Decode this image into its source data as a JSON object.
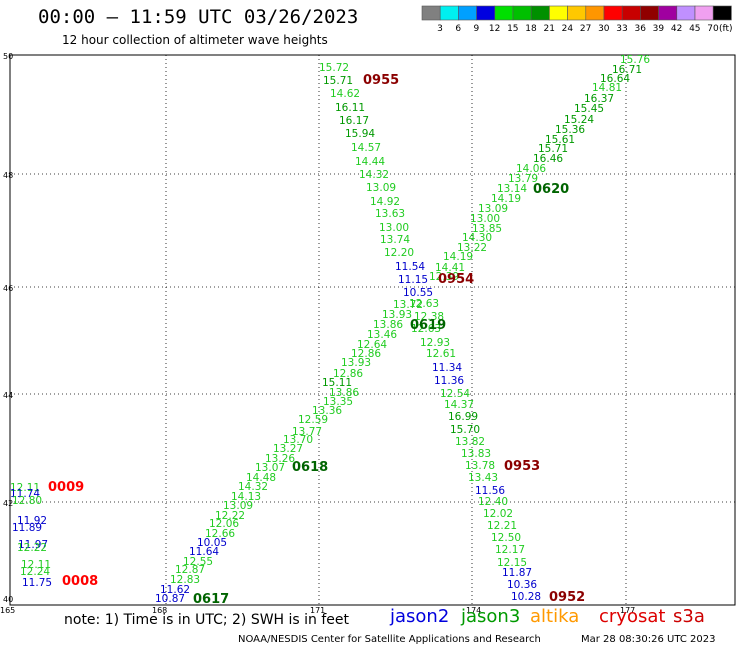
{
  "header": {
    "title": "00:00 – 11:59 UTC 03/26/2023",
    "subtitle": "12 hour collection of altimeter wave heights"
  },
  "color_scale": {
    "ticks": [
      "3",
      "6",
      "9",
      "12",
      "15",
      "18",
      "21",
      "24",
      "27",
      "30",
      "33",
      "36",
      "39",
      "42",
      "45",
      "70"
    ],
    "unit": "(ft)",
    "colors": [
      "#808080",
      "#00f0f0",
      "#00a0ff",
      "#0000e0",
      "#00e000",
      "#00c000",
      "#009000",
      "#ffff00",
      "#ffc800",
      "#ff9600",
      "#ff0000",
      "#c80000",
      "#900000",
      "#a000a0",
      "#c090ff",
      "#f0a0f0",
      "#000000"
    ]
  },
  "axes": {
    "lat_labels": [
      "50",
      "48",
      "46",
      "44",
      "42",
      "40"
    ],
    "lon_labels": [
      "165",
      "168",
      "171",
      "174",
      "177"
    ]
  },
  "track_times": [
    {
      "label": "0955",
      "color": "#8b0000"
    },
    {
      "label": "0620",
      "color": "#006400"
    },
    {
      "label": "0954",
      "color": "#8b0000"
    },
    {
      "label": "0619",
      "color": "#006400"
    },
    {
      "label": "0618",
      "color": "#006400"
    },
    {
      "label": "0953",
      "color": "#8b0000"
    },
    {
      "label": "0009",
      "color": "#ff0000"
    },
    {
      "label": "0008",
      "color": "#ff0000"
    },
    {
      "label": "0617",
      "color": "#006400"
    },
    {
      "label": "0952",
      "color": "#8b0000"
    }
  ],
  "values": [
    {
      "text": "15.72",
      "color": "#22cc22"
    },
    {
      "text": "15.71",
      "color": "#009900"
    },
    {
      "text": "14.62",
      "color": "#22cc22"
    },
    {
      "text": "16.11",
      "color": "#009900"
    },
    {
      "text": "16.17",
      "color": "#009900"
    },
    {
      "text": "15.94",
      "color": "#009900"
    },
    {
      "text": "14.57",
      "color": "#22cc22"
    },
    {
      "text": "14.44",
      "color": "#22cc22"
    },
    {
      "text": "14.32",
      "color": "#22cc22"
    },
    {
      "text": "13.09",
      "color": "#22cc22"
    },
    {
      "text": "14.92",
      "color": "#22cc22"
    },
    {
      "text": "13.63",
      "color": "#22cc22"
    },
    {
      "text": "13.00",
      "color": "#22cc22"
    },
    {
      "text": "13.74",
      "color": "#22cc22"
    },
    {
      "text": "12.20",
      "color": "#22cc22"
    },
    {
      "text": "11.54",
      "color": "#0000cc"
    },
    {
      "text": "11.15",
      "color": "#0000cc"
    },
    {
      "text": "10.55",
      "color": "#0000cc"
    },
    {
      "text": "13.72",
      "color": "#22cc22"
    },
    {
      "text": "12.63",
      "color": "#22cc22"
    },
    {
      "text": "13.93",
      "color": "#22cc22"
    },
    {
      "text": "12.38",
      "color": "#22cc22"
    },
    {
      "text": "13.86",
      "color": "#22cc22"
    },
    {
      "text": "12.63",
      "color": "#22cc22"
    },
    {
      "text": "13.46",
      "color": "#22cc22"
    },
    {
      "text": "12.64",
      "color": "#22cc22"
    },
    {
      "text": "12.93",
      "color": "#22cc22"
    },
    {
      "text": "12.86",
      "color": "#22cc22"
    },
    {
      "text": "12.61",
      "color": "#22cc22"
    },
    {
      "text": "13.93",
      "color": "#22cc22"
    },
    {
      "text": "11.34",
      "color": "#0000cc"
    },
    {
      "text": "12.86",
      "color": "#22cc22"
    },
    {
      "text": "11.36",
      "color": "#0000cc"
    },
    {
      "text": "15.11",
      "color": "#009900"
    },
    {
      "text": "13.86",
      "color": "#22cc22"
    },
    {
      "text": "12.54",
      "color": "#22cc22"
    },
    {
      "text": "13.35",
      "color": "#22cc22"
    },
    {
      "text": "14.37",
      "color": "#22cc22"
    },
    {
      "text": "13.36",
      "color": "#22cc22"
    },
    {
      "text": "16.99",
      "color": "#009900"
    },
    {
      "text": "12.59",
      "color": "#22cc22"
    },
    {
      "text": "15.70",
      "color": "#009900"
    },
    {
      "text": "13.77",
      "color": "#22cc22"
    },
    {
      "text": "13.82",
      "color": "#22cc22"
    },
    {
      "text": "13.70",
      "color": "#22cc22"
    },
    {
      "text": "13.27",
      "color": "#22cc22"
    },
    {
      "text": "13.83",
      "color": "#22cc22"
    },
    {
      "text": "13.26",
      "color": "#22cc22"
    },
    {
      "text": "13.07",
      "color": "#22cc22"
    },
    {
      "text": "13.78",
      "color": "#22cc22"
    },
    {
      "text": "14.48",
      "color": "#22cc22"
    },
    {
      "text": "13.43",
      "color": "#22cc22"
    },
    {
      "text": "14.32",
      "color": "#22cc22"
    },
    {
      "text": "11.56",
      "color": "#0000cc"
    },
    {
      "text": "14.13",
      "color": "#22cc22"
    },
    {
      "text": "12.40",
      "color": "#22cc22"
    },
    {
      "text": "13.09",
      "color": "#22cc22"
    },
    {
      "text": "12.02",
      "color": "#22cc22"
    },
    {
      "text": "12.22",
      "color": "#22cc22"
    },
    {
      "text": "12.21",
      "color": "#22cc22"
    },
    {
      "text": "12.06",
      "color": "#22cc22"
    },
    {
      "text": "12.66",
      "color": "#22cc22"
    },
    {
      "text": "12.50",
      "color": "#22cc22"
    },
    {
      "text": "10.05",
      "color": "#0000cc"
    },
    {
      "text": "12.17",
      "color": "#22cc22"
    },
    {
      "text": "11.64",
      "color": "#0000cc"
    },
    {
      "text": "12.15",
      "color": "#22cc22"
    },
    {
      "text": "12.55",
      "color": "#22cc22"
    },
    {
      "text": "11.87",
      "color": "#0000cc"
    },
    {
      "text": "12.87",
      "color": "#22cc22"
    },
    {
      "text": "12.83",
      "color": "#22cc22"
    },
    {
      "text": "10.36",
      "color": "#0000cc"
    },
    {
      "text": "11.62",
      "color": "#0000cc"
    },
    {
      "text": "10.28",
      "color": "#0000cc"
    },
    {
      "text": "10.87",
      "color": "#0000cc"
    },
    {
      "text": "15.76",
      "color": "#22cc22"
    },
    {
      "text": "16.71",
      "color": "#009900"
    },
    {
      "text": "16.64",
      "color": "#009900"
    },
    {
      "text": "14.81",
      "color": "#22cc22"
    },
    {
      "text": "16.37",
      "color": "#009900"
    },
    {
      "text": "15.45",
      "color": "#009900"
    },
    {
      "text": "15.24",
      "color": "#009900"
    },
    {
      "text": "15.36",
      "color": "#009900"
    },
    {
      "text": "15.61",
      "color": "#009900"
    },
    {
      "text": "15.71",
      "color": "#009900"
    },
    {
      "text": "16.46",
      "color": "#009900"
    },
    {
      "text": "14.06",
      "color": "#22cc22"
    },
    {
      "text": "13.79",
      "color": "#22cc22"
    },
    {
      "text": "13.14",
      "color": "#22cc22"
    },
    {
      "text": "14.19",
      "color": "#22cc22"
    },
    {
      "text": "13.09",
      "color": "#22cc22"
    },
    {
      "text": "13.00",
      "color": "#22cc22"
    },
    {
      "text": "13.85",
      "color": "#22cc22"
    },
    {
      "text": "14.30",
      "color": "#22cc22"
    },
    {
      "text": "13.22",
      "color": "#22cc22"
    },
    {
      "text": "14.19",
      "color": "#22cc22"
    },
    {
      "text": "14.41",
      "color": "#22cc22"
    },
    {
      "text": "12.39",
      "color": "#22cc22"
    },
    {
      "text": "12.11",
      "color": "#22cc22"
    },
    {
      "text": "11.74",
      "color": "#0000cc"
    },
    {
      "text": "12.80",
      "color": "#22cc22"
    },
    {
      "text": "11.92",
      "color": "#0000cc"
    },
    {
      "text": "11.89",
      "color": "#0000cc"
    },
    {
      "text": "11.97",
      "color": "#0000cc"
    },
    {
      "text": "12.22",
      "color": "#22cc22"
    },
    {
      "text": "12.11",
      "color": "#22cc22"
    },
    {
      "text": "12.24",
      "color": "#22cc22"
    },
    {
      "text": "11.75",
      "color": "#0000cc"
    }
  ],
  "footer": {
    "note": "note: 1) Time is in UTC; 2) SWH is in feet",
    "satellites": [
      {
        "name": "jason2",
        "color": "#0000dd"
      },
      {
        "name": "jason3",
        "color": "#009900"
      },
      {
        "name": "altika",
        "color": "#ff9900"
      },
      {
        "name": "cryosat",
        "color": "#dd0000"
      },
      {
        "name": "s3a",
        "color": "#cc0000"
      }
    ],
    "credit": "NOAA/NESDIS Center for Satellite Applications and Research",
    "timestamp": "Mar 28 08:30:26 UTC 2023"
  }
}
